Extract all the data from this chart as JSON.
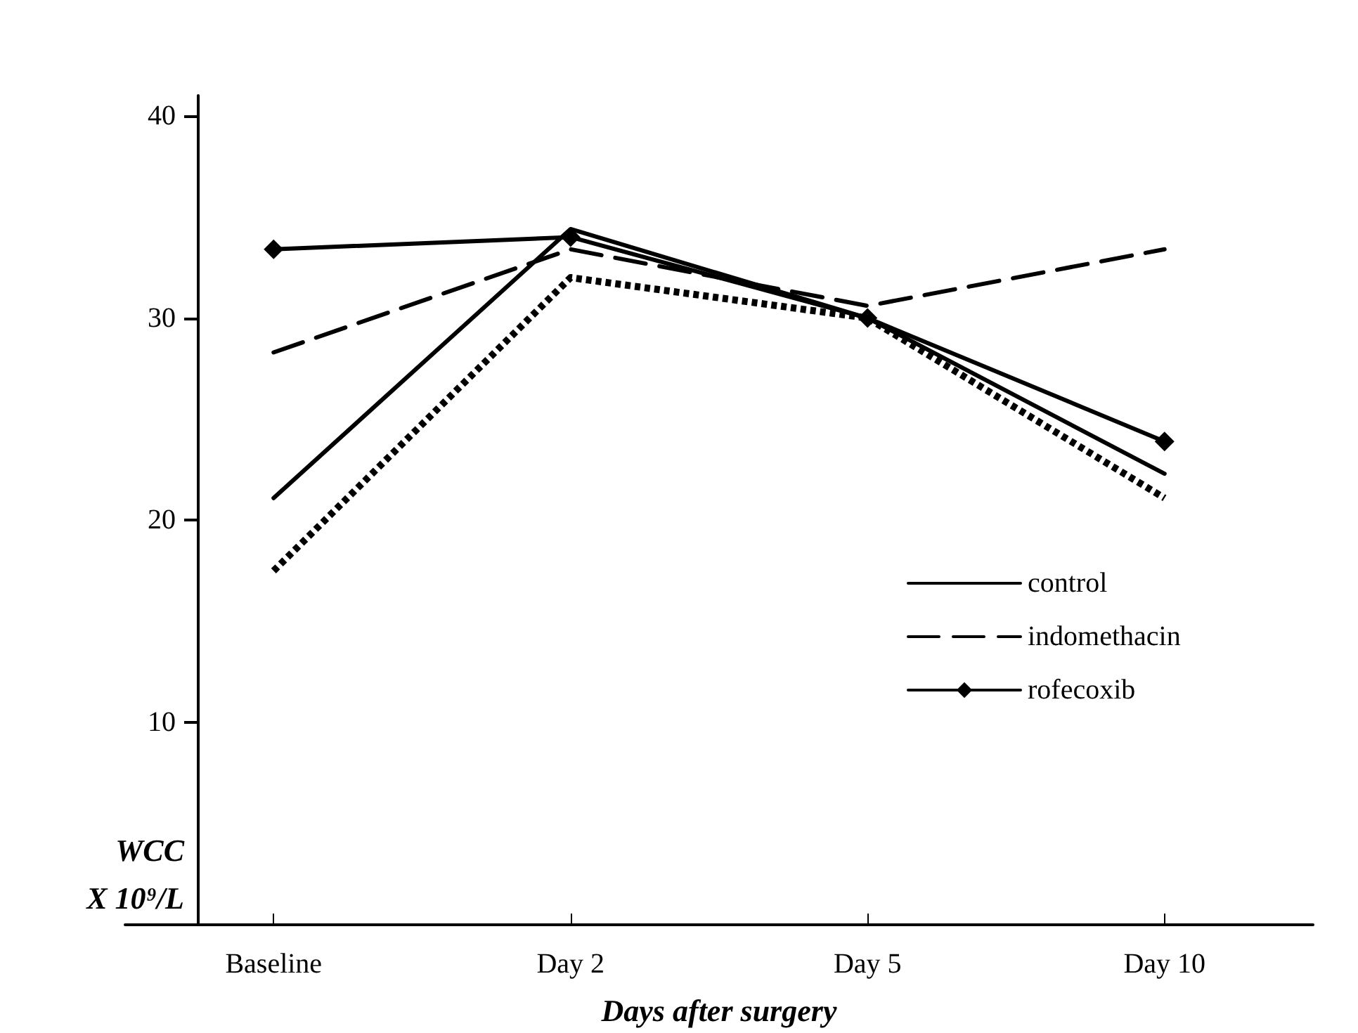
{
  "chart_data": {
    "type": "line",
    "xlabel": "Days after surgery",
    "ylabel": "WCC\nX 10⁹/L",
    "categories": [
      "Baseline",
      "Day 2",
      "Day 5",
      "Day 10"
    ],
    "series": [
      {
        "name": "control",
        "color": "#000000",
        "values": [
          21.1,
          34.4,
          30,
          22.3
        ],
        "line_style": "solid",
        "marker": "none"
      },
      {
        "name": "indomethacin",
        "color": "#000000",
        "values": [
          28.3,
          33.4,
          30.6,
          33.4
        ],
        "line_style": "dashed",
        "marker": "none"
      },
      {
        "name": "rofecoxib",
        "color": "#000000",
        "values": [
          33.4,
          34.0,
          30,
          23.9
        ],
        "line_style": "solid",
        "marker": "diamond"
      },
      {
        "color": "#000000",
        "values": [
          17.5,
          32.0,
          30,
          21.1
        ],
        "line_style": "dotted",
        "marker": "none"
      }
    ],
    "ylim": [
      0,
      41
    ],
    "yticks": [
      10,
      20,
      30,
      40
    ],
    "grid": false,
    "legend": "bottom right"
  }
}
